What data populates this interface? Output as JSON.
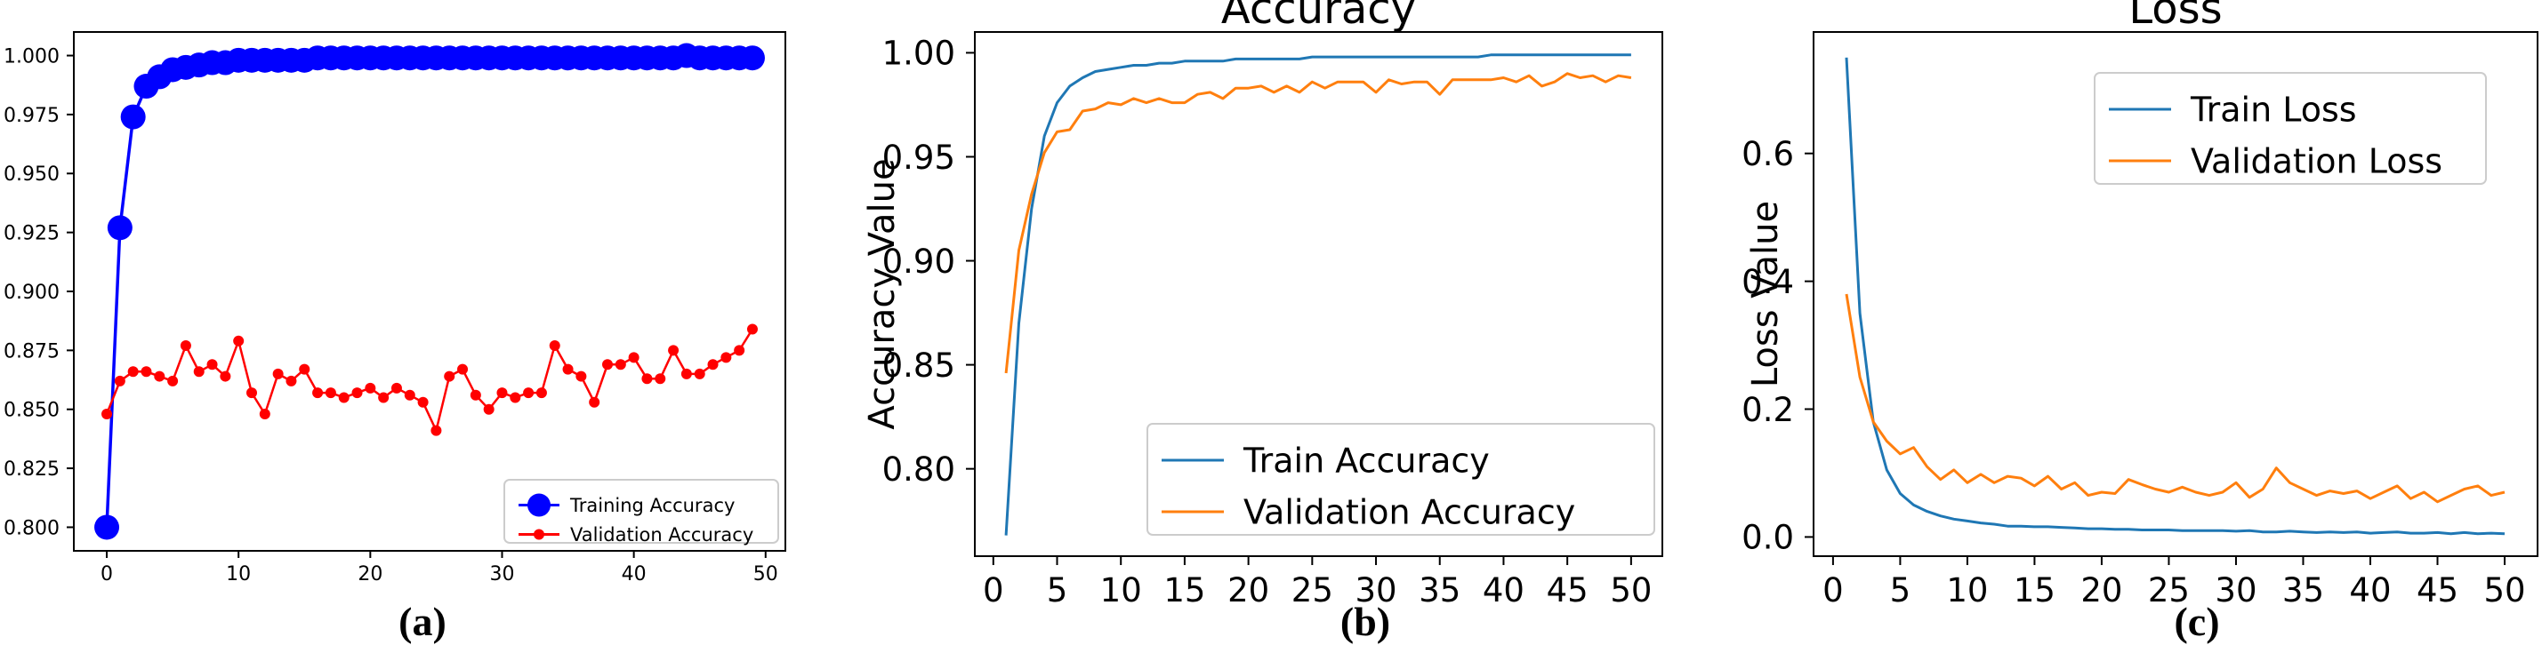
{
  "chart_data": [
    {
      "type": "line",
      "panel_label": "(a)",
      "title": "",
      "xlabel": "",
      "ylabel": "",
      "xlim": [
        -2.5,
        51.5
      ],
      "ylim": [
        0.79,
        1.01
      ],
      "x_ticks": [
        0,
        10,
        20,
        30,
        40,
        50
      ],
      "y_ticks": [
        0.8,
        0.825,
        0.85,
        0.875,
        0.9,
        0.925,
        0.95,
        0.975,
        1.0
      ],
      "y_tick_labels": [
        "0.800",
        "0.825",
        "0.850",
        "0.875",
        "0.900",
        "0.925",
        "0.950",
        "0.975",
        "1.000"
      ],
      "grid": false,
      "legend_position": "bottom-right",
      "series": [
        {
          "name": "Training Accuracy",
          "color": "#0000ff",
          "marker": "large-dot",
          "x": [
            0,
            1,
            2,
            3,
            4,
            5,
            6,
            7,
            8,
            9,
            10,
            11,
            12,
            13,
            14,
            15,
            16,
            17,
            18,
            19,
            20,
            21,
            22,
            23,
            24,
            25,
            26,
            27,
            28,
            29,
            30,
            31,
            32,
            33,
            34,
            35,
            36,
            37,
            38,
            39,
            40,
            41,
            42,
            43,
            44,
            45,
            46,
            47,
            48,
            49
          ],
          "y": [
            0.8,
            0.927,
            0.974,
            0.987,
            0.991,
            0.994,
            0.995,
            0.996,
            0.997,
            0.997,
            0.998,
            0.998,
            0.998,
            0.998,
            0.998,
            0.998,
            0.999,
            0.999,
            0.999,
            0.999,
            0.999,
            0.999,
            0.999,
            0.999,
            0.999,
            0.999,
            0.999,
            0.999,
            0.999,
            0.999,
            0.999,
            0.999,
            0.999,
            0.999,
            0.999,
            0.999,
            0.999,
            0.999,
            0.999,
            0.999,
            0.999,
            0.999,
            0.999,
            0.999,
            1.0,
            0.999,
            0.999,
            0.999,
            0.999,
            0.999
          ]
        },
        {
          "name": "Validation Accuracy",
          "color": "#ff0000",
          "marker": "small-dot",
          "x": [
            0,
            1,
            2,
            3,
            4,
            5,
            6,
            7,
            8,
            9,
            10,
            11,
            12,
            13,
            14,
            15,
            16,
            17,
            18,
            19,
            20,
            21,
            22,
            23,
            24,
            25,
            26,
            27,
            28,
            29,
            30,
            31,
            32,
            33,
            34,
            35,
            36,
            37,
            38,
            39,
            40,
            41,
            42,
            43,
            44,
            45,
            46,
            47,
            48,
            49
          ],
          "y": [
            0.848,
            0.862,
            0.866,
            0.866,
            0.864,
            0.862,
            0.877,
            0.866,
            0.869,
            0.864,
            0.879,
            0.857,
            0.848,
            0.865,
            0.862,
            0.867,
            0.857,
            0.857,
            0.855,
            0.857,
            0.859,
            0.855,
            0.859,
            0.856,
            0.853,
            0.841,
            0.864,
            0.867,
            0.856,
            0.85,
            0.857,
            0.855,
            0.857,
            0.857,
            0.877,
            0.867,
            0.864,
            0.853,
            0.869,
            0.869,
            0.872,
            0.863,
            0.863,
            0.875,
            0.865,
            0.865,
            0.869,
            0.872,
            0.875,
            0.884
          ]
        }
      ]
    },
    {
      "type": "line",
      "panel_label": "(b)",
      "title": "Accuracy",
      "xlabel": "",
      "ylabel": "Accuracy Value",
      "xlim": [
        -1.45,
        52.45
      ],
      "ylim": [
        0.758,
        1.01
      ],
      "x_ticks": [
        0,
        5,
        10,
        15,
        20,
        25,
        30,
        35,
        40,
        45,
        50
      ],
      "y_ticks": [
        0.8,
        0.85,
        0.9,
        0.95,
        1.0
      ],
      "y_tick_labels": [
        "0.80",
        "0.85",
        "0.90",
        "0.95",
        "1.00"
      ],
      "grid": false,
      "legend_position": "bottom-right",
      "series": [
        {
          "name": "Train Accuracy",
          "color": "#1f77b4",
          "x": [
            1,
            2,
            3,
            4,
            5,
            6,
            7,
            8,
            9,
            10,
            11,
            12,
            13,
            14,
            15,
            16,
            17,
            18,
            19,
            20,
            21,
            22,
            23,
            24,
            25,
            26,
            27,
            28,
            29,
            30,
            31,
            32,
            33,
            34,
            35,
            36,
            37,
            38,
            39,
            40,
            41,
            42,
            43,
            44,
            45,
            46,
            47,
            48,
            49,
            50
          ],
          "y": [
            0.768,
            0.87,
            0.925,
            0.96,
            0.976,
            0.984,
            0.988,
            0.991,
            0.992,
            0.993,
            0.994,
            0.994,
            0.995,
            0.995,
            0.996,
            0.996,
            0.996,
            0.996,
            0.997,
            0.997,
            0.997,
            0.997,
            0.997,
            0.997,
            0.998,
            0.998,
            0.998,
            0.998,
            0.998,
            0.998,
            0.998,
            0.998,
            0.998,
            0.998,
            0.998,
            0.998,
            0.998,
            0.998,
            0.999,
            0.999,
            0.999,
            0.999,
            0.999,
            0.999,
            0.999,
            0.999,
            0.999,
            0.999,
            0.999,
            0.999
          ]
        },
        {
          "name": "Validation Accuracy",
          "color": "#ff7f0e",
          "x": [
            1,
            2,
            3,
            4,
            5,
            6,
            7,
            8,
            9,
            10,
            11,
            12,
            13,
            14,
            15,
            16,
            17,
            18,
            19,
            20,
            21,
            22,
            23,
            24,
            25,
            26,
            27,
            28,
            29,
            30,
            31,
            32,
            33,
            34,
            35,
            36,
            37,
            38,
            39,
            40,
            41,
            42,
            43,
            44,
            45,
            46,
            47,
            48,
            49,
            50
          ],
          "y": [
            0.846,
            0.905,
            0.932,
            0.952,
            0.962,
            0.963,
            0.972,
            0.973,
            0.976,
            0.975,
            0.978,
            0.976,
            0.978,
            0.976,
            0.976,
            0.98,
            0.981,
            0.978,
            0.983,
            0.983,
            0.984,
            0.981,
            0.984,
            0.981,
            0.986,
            0.983,
            0.986,
            0.986,
            0.986,
            0.981,
            0.987,
            0.985,
            0.986,
            0.986,
            0.98,
            0.987,
            0.987,
            0.987,
            0.987,
            0.988,
            0.986,
            0.989,
            0.984,
            0.986,
            0.99,
            0.988,
            0.989,
            0.986,
            0.989,
            0.988
          ]
        }
      ]
    },
    {
      "type": "line",
      "panel_label": "(c)",
      "title": "Loss",
      "xlabel": "",
      "ylabel": "Loss Value",
      "xlim": [
        -1.45,
        52.45
      ],
      "ylim": [
        -0.03,
        0.79
      ],
      "x_ticks": [
        0,
        5,
        10,
        15,
        20,
        25,
        30,
        35,
        40,
        45,
        50
      ],
      "y_ticks": [
        0.0,
        0.2,
        0.4,
        0.6
      ],
      "y_tick_labels": [
        "0.0",
        "0.2",
        "0.4",
        "0.6"
      ],
      "grid": false,
      "legend_position": "top-right",
      "series": [
        {
          "name": "Train Loss",
          "color": "#1f77b4",
          "x": [
            1,
            2,
            3,
            4,
            5,
            6,
            7,
            8,
            9,
            10,
            11,
            12,
            13,
            14,
            15,
            16,
            17,
            18,
            19,
            20,
            21,
            22,
            23,
            24,
            25,
            26,
            27,
            28,
            29,
            30,
            31,
            32,
            33,
            34,
            35,
            36,
            37,
            38,
            39,
            40,
            41,
            42,
            43,
            44,
            45,
            46,
            47,
            48,
            49,
            50
          ],
          "y": [
            0.75,
            0.35,
            0.18,
            0.105,
            0.068,
            0.05,
            0.04,
            0.033,
            0.028,
            0.025,
            0.022,
            0.02,
            0.017,
            0.017,
            0.016,
            0.016,
            0.015,
            0.014,
            0.013,
            0.013,
            0.012,
            0.012,
            0.011,
            0.011,
            0.011,
            0.01,
            0.01,
            0.01,
            0.01,
            0.009,
            0.01,
            0.008,
            0.008,
            0.009,
            0.008,
            0.007,
            0.008,
            0.007,
            0.008,
            0.006,
            0.007,
            0.008,
            0.006,
            0.006,
            0.007,
            0.005,
            0.007,
            0.005,
            0.006,
            0.005
          ]
        },
        {
          "name": "Validation Loss",
          "color": "#ff7f0e",
          "x": [
            1,
            2,
            3,
            4,
            5,
            6,
            7,
            8,
            9,
            10,
            11,
            12,
            13,
            14,
            15,
            16,
            17,
            18,
            19,
            20,
            21,
            22,
            23,
            24,
            25,
            26,
            27,
            28,
            29,
            30,
            31,
            32,
            33,
            34,
            35,
            36,
            37,
            38,
            39,
            40,
            41,
            42,
            43,
            44,
            45,
            46,
            47,
            48,
            49,
            50
          ],
          "y": [
            0.38,
            0.25,
            0.18,
            0.15,
            0.13,
            0.14,
            0.11,
            0.09,
            0.105,
            0.085,
            0.098,
            0.085,
            0.095,
            0.092,
            0.08,
            0.095,
            0.075,
            0.085,
            0.065,
            0.07,
            0.068,
            0.09,
            0.082,
            0.075,
            0.07,
            0.078,
            0.07,
            0.065,
            0.07,
            0.085,
            0.062,
            0.075,
            0.108,
            0.085,
            0.075,
            0.065,
            0.072,
            0.068,
            0.072,
            0.06,
            0.07,
            0.08,
            0.06,
            0.07,
            0.055,
            0.065,
            0.075,
            0.08,
            0.065,
            0.07
          ]
        }
      ]
    }
  ]
}
